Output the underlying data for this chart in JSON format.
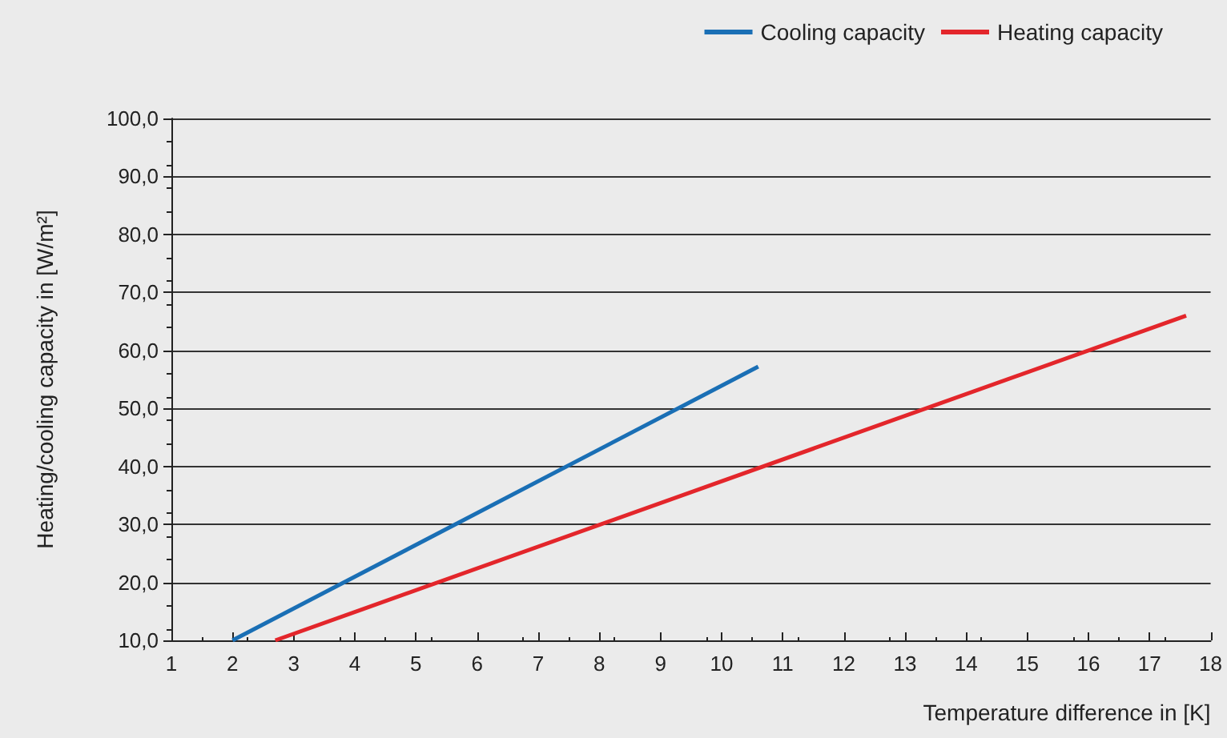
{
  "chart_data": {
    "type": "line",
    "xlabel": "Temperature difference in [K]",
    "ylabel": "Heating/cooling capacity in [W/m²]",
    "series": [
      {
        "name": "Cooling capacity",
        "color": "#1a6fb5",
        "x": [
          2,
          10.6
        ],
        "values": [
          10,
          57.2
        ]
      },
      {
        "name": "Heating capacity",
        "color": "#e3262b",
        "x": [
          2.7,
          17.6
        ],
        "values": [
          10,
          66
        ]
      }
    ],
    "xlim": [
      1,
      18
    ],
    "xticks": [
      1,
      2,
      3,
      4,
      5,
      6,
      7,
      8,
      9,
      10,
      11,
      12,
      13,
      14,
      15,
      16,
      17,
      18
    ],
    "ylim": [
      10,
      100
    ],
    "yticks": [
      {
        "value": 10,
        "label": "10,0"
      },
      {
        "value": 20,
        "label": "20,0"
      },
      {
        "value": 30,
        "label": "30,0"
      },
      {
        "value": 40,
        "label": "40,0"
      },
      {
        "value": 50,
        "label": "50,0"
      },
      {
        "value": 60,
        "label": "60,0"
      },
      {
        "value": 70,
        "label": "70,0"
      },
      {
        "value": 80,
        "label": "80,0"
      },
      {
        "value": 90,
        "label": "90,0"
      },
      {
        "value": 100,
        "label": "100,0"
      }
    ],
    "grid": "y",
    "legend": "top right",
    "marker": "none",
    "line_style": "solid"
  }
}
